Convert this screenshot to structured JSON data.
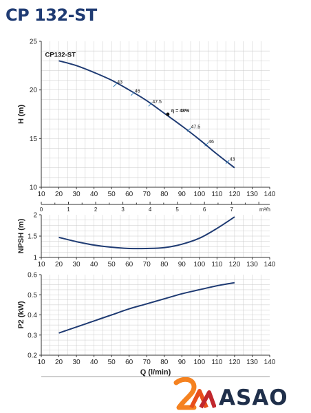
{
  "title": "CP 132-ST",
  "brand": {
    "name": "ASAO",
    "mark_colors": [
      "#f58220",
      "#e84e1b",
      "#c1272d"
    ],
    "text_color": "#1f2f4a"
  },
  "colors": {
    "curve": "#1f3b73",
    "grid": "#c8c8c8",
    "axis": "#333333",
    "title": "#1f3b73"
  },
  "chart_data": [
    {
      "id": "head",
      "type": "line",
      "ylabel": "H (m)",
      "xlim": [
        10,
        140
      ],
      "ylim": [
        10,
        25
      ],
      "xticks": [
        10,
        20,
        30,
        40,
        50,
        60,
        70,
        80,
        90,
        100,
        110,
        120,
        130,
        140
      ],
      "yticks": [
        10,
        15,
        20,
        25
      ],
      "grid": true,
      "series": [
        {
          "name": "CP132-ST",
          "x": [
            20,
            30,
            40,
            50,
            60,
            70,
            80,
            90,
            100,
            110,
            120
          ],
          "y": [
            23.0,
            22.5,
            21.8,
            21.0,
            20.0,
            18.9,
            17.6,
            16.3,
            14.9,
            13.4,
            12.0
          ]
        }
      ],
      "efficiency_marks": [
        {
          "x": 52,
          "y": 20.5,
          "label": "43"
        },
        {
          "x": 62,
          "y": 19.6,
          "label": "46"
        },
        {
          "x": 72,
          "y": 18.5,
          "label": "47.5"
        },
        {
          "x": 82,
          "y": 17.5,
          "label": "η = 48%"
        },
        {
          "x": 94,
          "y": 15.9,
          "label": "47.5"
        },
        {
          "x": 104,
          "y": 14.4,
          "label": "46"
        },
        {
          "x": 116,
          "y": 12.6,
          "label": "43"
        }
      ],
      "secondary_axis": {
        "unit_label": "m³/h",
        "xlim": [
          0,
          8.4
        ],
        "ticks": [
          "0",
          "1",
          "2",
          "3",
          "4",
          "5",
          "6",
          "7"
        ]
      }
    },
    {
      "id": "npsh",
      "type": "line",
      "ylabel": "NPSH (m)",
      "xlim": [
        10,
        140
      ],
      "ylim": [
        1,
        2
      ],
      "xticks": [
        10,
        20,
        30,
        40,
        50,
        60,
        70,
        80,
        90,
        100,
        110,
        120,
        130,
        140
      ],
      "yticks": [
        "1",
        "1.5",
        "2"
      ],
      "grid": true,
      "series": [
        {
          "x": [
            20,
            30,
            40,
            50,
            60,
            70,
            80,
            90,
            100,
            110,
            120
          ],
          "y": [
            1.47,
            1.37,
            1.29,
            1.24,
            1.21,
            1.21,
            1.23,
            1.31,
            1.45,
            1.68,
            1.95
          ]
        }
      ]
    },
    {
      "id": "power",
      "type": "line",
      "ylabel": "P2 (kW)",
      "xlabel": "Q (l/min)",
      "xlim": [
        10,
        140
      ],
      "ylim": [
        0.2,
        0.6
      ],
      "xticks": [
        10,
        20,
        30,
        40,
        50,
        60,
        70,
        80,
        90,
        100,
        110,
        120,
        130,
        140
      ],
      "yticks": [
        "0.2",
        "0.3",
        "0.4",
        "0.5",
        "0.6"
      ],
      "grid": true,
      "series": [
        {
          "x": [
            20,
            30,
            40,
            50,
            60,
            70,
            80,
            90,
            100,
            110,
            120
          ],
          "y": [
            0.31,
            0.34,
            0.37,
            0.4,
            0.43,
            0.455,
            0.48,
            0.505,
            0.525,
            0.545,
            0.56
          ]
        }
      ]
    }
  ]
}
